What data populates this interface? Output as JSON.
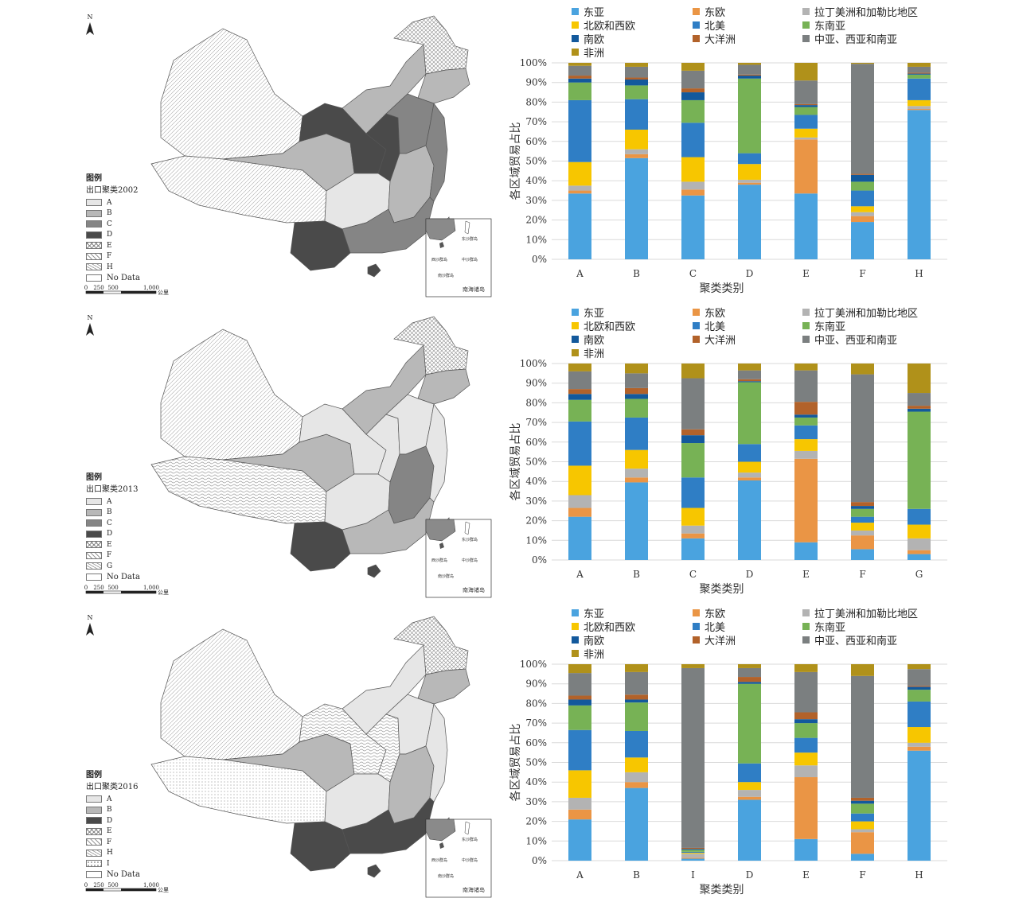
{
  "region_legend": [
    {
      "label": "东亚",
      "color": "#4aa3df"
    },
    {
      "label": "东欧",
      "color": "#ea9545"
    },
    {
      "label": "拉丁美洲和加勒比地区",
      "color": "#b3b3b3"
    },
    {
      "label": "北欧和西欧",
      "color": "#f7c600"
    },
    {
      "label": "北美",
      "color": "#2f7ec5"
    },
    {
      "label": "东南亚",
      "color": "#77b255"
    },
    {
      "label": "南欧",
      "color": "#13599c"
    },
    {
      "label": "大洋洲",
      "color": "#b2622a"
    },
    {
      "label": "中亚、西亚和南亚",
      "color": "#7b7f80"
    },
    {
      "label": "非洲",
      "color": "#b0911a"
    }
  ],
  "maps": [
    {
      "legend_title": "图例",
      "legend_subtitle": "出口聚类2002",
      "classes": [
        {
          "label": "A",
          "fill": "#e6e6e6",
          "pattern": "none"
        },
        {
          "label": "B",
          "fill": "#b8b8b8",
          "pattern": "none"
        },
        {
          "label": "C",
          "fill": "#858585",
          "pattern": "none"
        },
        {
          "label": "D",
          "fill": "#4a4a4a",
          "pattern": "none"
        },
        {
          "label": "E",
          "fill": "#ffffff",
          "pattern": "cross"
        },
        {
          "label": "F",
          "fill": "#ffffff",
          "pattern": "diag"
        },
        {
          "label": "H",
          "fill": "#ffffff",
          "pattern": "wave"
        },
        {
          "label": "No Data",
          "fill": "#ffffff",
          "pattern": "none"
        }
      ],
      "scale": [
        "0",
        "250",
        "500",
        "1,000"
      ],
      "scale_unit": "公里"
    },
    {
      "legend_title": "图例",
      "legend_subtitle": "出口聚类2013",
      "classes": [
        {
          "label": "A",
          "fill": "#e6e6e6",
          "pattern": "none"
        },
        {
          "label": "B",
          "fill": "#b8b8b8",
          "pattern": "none"
        },
        {
          "label": "C",
          "fill": "#858585",
          "pattern": "none"
        },
        {
          "label": "D",
          "fill": "#4a4a4a",
          "pattern": "none"
        },
        {
          "label": "E",
          "fill": "#ffffff",
          "pattern": "cross"
        },
        {
          "label": "F",
          "fill": "#ffffff",
          "pattern": "diag"
        },
        {
          "label": "G",
          "fill": "#ffffff",
          "pattern": "wave"
        },
        {
          "label": "No Data",
          "fill": "#ffffff",
          "pattern": "none"
        }
      ],
      "scale": [
        "0",
        "250",
        "500",
        "1,000"
      ],
      "scale_unit": "公里"
    },
    {
      "legend_title": "图例",
      "legend_subtitle": "出口聚类2016",
      "classes": [
        {
          "label": "A",
          "fill": "#e6e6e6",
          "pattern": "none"
        },
        {
          "label": "B",
          "fill": "#b8b8b8",
          "pattern": "none"
        },
        {
          "label": "D",
          "fill": "#4a4a4a",
          "pattern": "none"
        },
        {
          "label": "E",
          "fill": "#ffffff",
          "pattern": "cross"
        },
        {
          "label": "F",
          "fill": "#ffffff",
          "pattern": "diag"
        },
        {
          "label": "H",
          "fill": "#ffffff",
          "pattern": "wave"
        },
        {
          "label": "I",
          "fill": "#ffffff",
          "pattern": "dots"
        },
        {
          "label": "No Data",
          "fill": "#ffffff",
          "pattern": "none"
        }
      ],
      "scale": [
        "0",
        "250",
        "500",
        "1,000"
      ],
      "scale_unit": "公里"
    }
  ],
  "map_labels": {
    "north": "N",
    "inset_islands": [
      "东沙群岛",
      "西沙群岛",
      "中沙群岛",
      "南沙群岛",
      "南海诸岛"
    ]
  },
  "chart_data": [
    {
      "type": "bar",
      "stacked": true,
      "title": "",
      "xlabel": "聚类类别",
      "ylabel": "各区域贸易占比",
      "ylim": [
        0,
        100
      ],
      "yticks": [
        "0%",
        "10%",
        "20%",
        "30%",
        "40%",
        "50%",
        "60%",
        "70%",
        "80%",
        "90%",
        "100%"
      ],
      "categories": [
        "A",
        "B",
        "C",
        "D",
        "E",
        "F",
        "H"
      ],
      "series": [
        {
          "name": "东亚",
          "values": [
            33.5,
            51.5,
            32.5,
            38,
            33.5,
            19,
            76
          ]
        },
        {
          "name": "东欧",
          "values": [
            1.5,
            2,
            3,
            1,
            27.5,
            3,
            0.5
          ]
        },
        {
          "name": "拉丁美洲和加勒比地区",
          "values": [
            2.5,
            2.5,
            4,
            1.5,
            1,
            2,
            1.5
          ]
        },
        {
          "name": "北欧和西欧",
          "values": [
            12,
            10,
            12.5,
            8,
            4.5,
            3,
            3
          ]
        },
        {
          "name": "北美",
          "values": [
            31.5,
            15.5,
            17.5,
            5.5,
            7,
            8,
            11
          ]
        },
        {
          "name": "东南亚",
          "values": [
            9,
            7,
            11.5,
            38,
            4,
            4.5,
            2
          ]
        },
        {
          "name": "南欧",
          "values": [
            2,
            3,
            4,
            1.5,
            1,
            3.5,
            0.5
          ]
        },
        {
          "name": "大洋洲",
          "values": [
            1.5,
            1,
            2,
            0.5,
            0.5,
            0.5,
            0.5
          ]
        },
        {
          "name": "中亚、西亚和南亚",
          "values": [
            5,
            5.5,
            9,
            5,
            12,
            56,
            3
          ]
        },
        {
          "name": "非洲",
          "values": [
            1.5,
            2,
            4,
            1,
            9,
            0.5,
            2
          ]
        }
      ]
    },
    {
      "type": "bar",
      "stacked": true,
      "title": "",
      "xlabel": "聚类类别",
      "ylabel": "各区域贸易占比",
      "ylim": [
        0,
        100
      ],
      "yticks": [
        "0%",
        "10%",
        "20%",
        "30%",
        "40%",
        "50%",
        "60%",
        "70%",
        "80%",
        "90%",
        "100%"
      ],
      "categories": [
        "A",
        "B",
        "C",
        "D",
        "E",
        "F",
        "G"
      ],
      "series": [
        {
          "name": "东亚",
          "values": [
            22,
            39.5,
            11,
            40.5,
            9,
            5.5,
            3
          ]
        },
        {
          "name": "东欧",
          "values": [
            4.5,
            2.5,
            2.5,
            1.5,
            42.5,
            7,
            2
          ]
        },
        {
          "name": "拉丁美洲和加勒比地区",
          "values": [
            6.5,
            4.5,
            4,
            2.5,
            4,
            2.5,
            6
          ]
        },
        {
          "name": "北欧和西欧",
          "values": [
            15,
            9.5,
            9,
            5.5,
            6,
            4,
            7
          ]
        },
        {
          "name": "北美",
          "values": [
            22.5,
            16.5,
            15.5,
            9,
            7,
            3,
            8
          ]
        },
        {
          "name": "东南亚",
          "values": [
            11,
            9.5,
            17.5,
            31.5,
            4,
            4,
            49.5
          ]
        },
        {
          "name": "南欧",
          "values": [
            3,
            2.5,
            4,
            0.5,
            1.5,
            1.5,
            1.5
          ]
        },
        {
          "name": "大洋洲",
          "values": [
            2.5,
            3,
            3,
            1,
            6.5,
            2,
            1.5
          ]
        },
        {
          "name": "中亚、西亚和南亚",
          "values": [
            9,
            7.5,
            26,
            4.5,
            16,
            65,
            6.5
          ]
        },
        {
          "name": "非洲",
          "values": [
            4,
            5,
            7.5,
            3.5,
            3.5,
            5.5,
            15
          ]
        }
      ]
    },
    {
      "type": "bar",
      "stacked": true,
      "title": "",
      "xlabel": "聚类类别",
      "ylabel": "各区域贸易占比",
      "ylim": [
        0,
        100
      ],
      "yticks": [
        "0%",
        "10%",
        "20%",
        "30%",
        "40%",
        "50%",
        "60%",
        "70%",
        "80%",
        "90%",
        "100%"
      ],
      "categories": [
        "A",
        "B",
        "I",
        "D",
        "E",
        "F",
        "H"
      ],
      "series": [
        {
          "name": "东亚",
          "values": [
            21,
            37,
            1,
            31,
            11,
            3.5,
            56
          ]
        },
        {
          "name": "东欧",
          "values": [
            5,
            3,
            0.5,
            1.5,
            31.5,
            11,
            2
          ]
        },
        {
          "name": "拉丁美洲和加勒比地区",
          "values": [
            6,
            5,
            2,
            3.5,
            6,
            1.5,
            2
          ]
        },
        {
          "name": "北欧和西欧",
          "values": [
            14,
            7.5,
            0.5,
            4,
            6.5,
            4,
            8
          ]
        },
        {
          "name": "北美",
          "values": [
            20.5,
            13.5,
            0.5,
            9.5,
            7.5,
            4,
            13
          ]
        },
        {
          "name": "东南亚",
          "values": [
            12.5,
            14.5,
            1,
            40.5,
            7.5,
            5,
            6
          ]
        },
        {
          "name": "南欧",
          "values": [
            3,
            1.5,
            0.5,
            1,
            2,
            1.5,
            1.5
          ]
        },
        {
          "name": "大洋洲",
          "values": [
            2,
            2.5,
            0.5,
            2.5,
            3.5,
            1.5,
            0.5
          ]
        },
        {
          "name": "中亚、西亚和南亚",
          "values": [
            11.5,
            11.5,
            91.5,
            4.5,
            20.5,
            62,
            8.5
          ]
        },
        {
          "name": "非洲",
          "values": [
            4.5,
            4,
            2,
            2,
            4,
            6,
            2.5
          ]
        }
      ]
    }
  ]
}
